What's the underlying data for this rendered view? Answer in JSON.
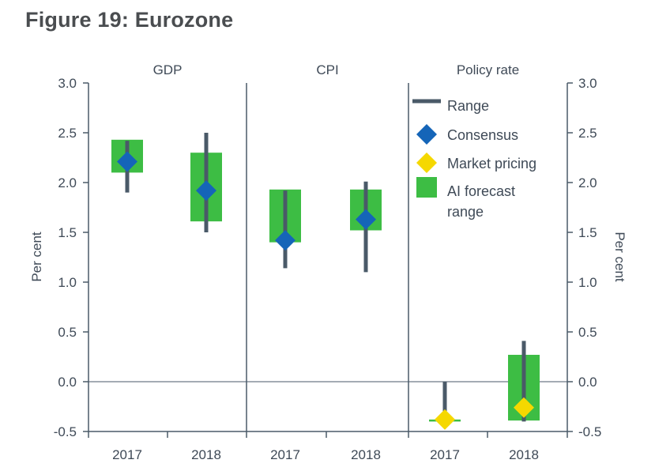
{
  "figure_title": "Figure 19: Eurozone",
  "chart_data": {
    "type": "range",
    "panels": [
      {
        "name": "GDP",
        "categories": [
          "2017",
          "2018"
        ],
        "range": [
          [
            1.9,
            2.42
          ],
          [
            1.5,
            2.5
          ]
        ],
        "ai_forecast_range": [
          [
            2.1,
            2.43
          ],
          [
            1.61,
            2.3
          ]
        ],
        "consensus": [
          2.21,
          1.92
        ],
        "market_pricing": [
          null,
          null
        ]
      },
      {
        "name": "CPI",
        "categories": [
          "2017",
          "2018"
        ],
        "range": [
          [
            1.14,
            1.92
          ],
          [
            1.1,
            2.01
          ]
        ],
        "ai_forecast_range": [
          [
            1.4,
            1.93
          ],
          [
            1.52,
            1.93
          ]
        ],
        "consensus": [
          1.42,
          1.63
        ],
        "market_pricing": [
          null,
          null
        ]
      },
      {
        "name": "Policy rate",
        "categories": [
          "2017",
          "2018"
        ],
        "range": [
          [
            -0.4,
            0.0
          ],
          [
            -0.4,
            0.41
          ]
        ],
        "ai_forecast_range": [
          [
            -0.4,
            -0.38
          ],
          [
            -0.39,
            0.27
          ]
        ],
        "consensus": [
          null,
          null
        ],
        "market_pricing": [
          -0.38,
          -0.26
        ]
      }
    ],
    "ylim": [
      -0.5,
      3.0
    ],
    "yticks": [
      "3.0",
      "2.5",
      "2.0",
      "1.5",
      "1.0",
      "0.5",
      "0.0",
      "-0.5"
    ],
    "ylabel": "Per cent",
    "ylabel_right": "Per cent",
    "legend": [
      "Range",
      "Consensus",
      "Market pricing",
      "AI forecast range"
    ],
    "legend_position": "top-right",
    "colors": {
      "range": "#4a5a68",
      "consensus": "#1565b8",
      "market_pricing": "#f5d800",
      "ai_forecast_range": "#3dbd44",
      "axis": "#4a5a68",
      "text": "#3f4a57"
    }
  }
}
